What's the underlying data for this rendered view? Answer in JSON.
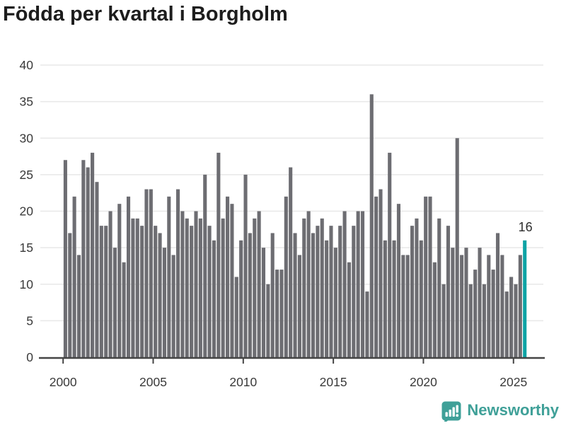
{
  "title": "Födda per kvartal i Borgholm",
  "footer": {
    "brand": "Newsworthy"
  },
  "colors": {
    "bar": "#6d6d72",
    "highlight": "#0da3a5",
    "brand": "#3fa098",
    "grid": "#e8e8e8",
    "axis": "#454545",
    "tick_text": "#3a3a3a",
    "annotation_text": "#2d2d2d",
    "title_text": "#1d1d1d"
  },
  "chart_data": {
    "type": "bar",
    "title": "Födda per kvartal i Borgholm",
    "xlabel": "",
    "ylabel": "",
    "ylim": [
      0,
      40
    ],
    "y_ticks": [
      0,
      5,
      10,
      15,
      20,
      25,
      30,
      35,
      40
    ],
    "x_tick_labels": [
      "2000",
      "2005",
      "2010",
      "2015",
      "2020",
      "2025"
    ],
    "grid": "horizontal",
    "frequency": "quarterly",
    "start_period": "2000 Q1",
    "end_period": "2025 Q3",
    "categories": [
      "2000 Q1",
      "2000 Q2",
      "2000 Q3",
      "2000 Q4",
      "2001 Q1",
      "2001 Q2",
      "2001 Q3",
      "2001 Q4",
      "2002 Q1",
      "2002 Q2",
      "2002 Q3",
      "2002 Q4",
      "2003 Q1",
      "2003 Q2",
      "2003 Q3",
      "2003 Q4",
      "2004 Q1",
      "2004 Q2",
      "2004 Q3",
      "2004 Q4",
      "2005 Q1",
      "2005 Q2",
      "2005 Q3",
      "2005 Q4",
      "2006 Q1",
      "2006 Q2",
      "2006 Q3",
      "2006 Q4",
      "2007 Q1",
      "2007 Q2",
      "2007 Q3",
      "2007 Q4",
      "2008 Q1",
      "2008 Q2",
      "2008 Q3",
      "2008 Q4",
      "2009 Q1",
      "2009 Q2",
      "2009 Q3",
      "2009 Q4",
      "2010 Q1",
      "2010 Q2",
      "2010 Q3",
      "2010 Q4",
      "2011 Q1",
      "2011 Q2",
      "2011 Q3",
      "2011 Q4",
      "2012 Q1",
      "2012 Q2",
      "2012 Q3",
      "2012 Q4",
      "2013 Q1",
      "2013 Q2",
      "2013 Q3",
      "2013 Q4",
      "2014 Q1",
      "2014 Q2",
      "2014 Q3",
      "2014 Q4",
      "2015 Q1",
      "2015 Q2",
      "2015 Q3",
      "2015 Q4",
      "2016 Q1",
      "2016 Q2",
      "2016 Q3",
      "2016 Q4",
      "2017 Q1",
      "2017 Q2",
      "2017 Q3",
      "2017 Q4",
      "2018 Q1",
      "2018 Q2",
      "2018 Q3",
      "2018 Q4",
      "2019 Q1",
      "2019 Q2",
      "2019 Q3",
      "2019 Q4",
      "2020 Q1",
      "2020 Q2",
      "2020 Q3",
      "2020 Q4",
      "2021 Q1",
      "2021 Q2",
      "2021 Q3",
      "2021 Q4",
      "2022 Q1",
      "2022 Q2",
      "2022 Q3",
      "2022 Q4",
      "2023 Q1",
      "2023 Q2",
      "2023 Q3",
      "2023 Q4",
      "2024 Q1",
      "2024 Q2",
      "2024 Q3",
      "2024 Q4",
      "2025 Q1",
      "2025 Q2",
      "2025 Q3"
    ],
    "values": [
      27,
      17,
      22,
      14,
      27,
      26,
      28,
      24,
      18,
      18,
      20,
      15,
      21,
      13,
      22,
      19,
      19,
      18,
      23,
      23,
      18,
      17,
      15,
      22,
      14,
      23,
      20,
      19,
      18,
      20,
      19,
      25,
      18,
      16,
      28,
      19,
      22,
      21,
      11,
      16,
      25,
      17,
      19,
      20,
      15,
      10,
      17,
      12,
      12,
      22,
      26,
      17,
      14,
      19,
      20,
      17,
      18,
      19,
      16,
      18,
      15,
      18,
      20,
      13,
      18,
      20,
      20,
      9,
      36,
      22,
      23,
      16,
      28,
      16,
      21,
      14,
      14,
      18,
      19,
      16,
      22,
      22,
      13,
      19,
      10,
      18,
      15,
      30,
      14,
      15,
      10,
      12,
      15,
      10,
      14,
      12,
      17,
      14,
      9,
      11,
      10,
      14,
      16
    ],
    "highlight_last": true,
    "highlight_value": 16,
    "annotation_label": "16",
    "legend": null
  }
}
